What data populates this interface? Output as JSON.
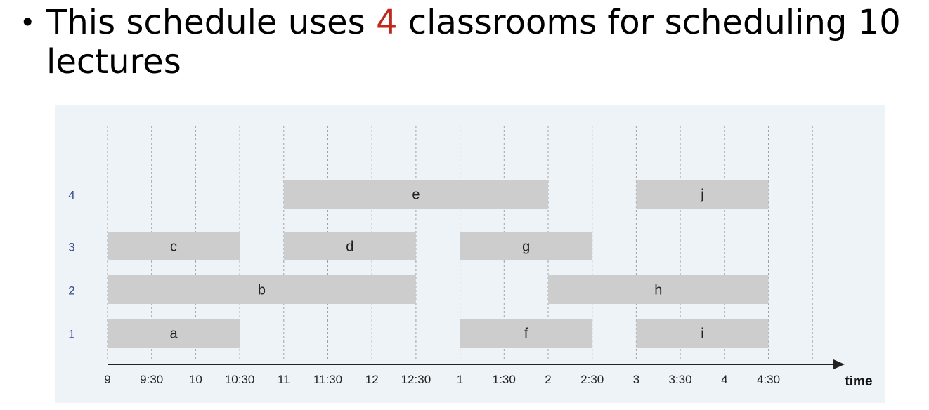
{
  "headline": {
    "bullet": "•",
    "text_before": "This schedule uses ",
    "highlight_number": "4",
    "text_after": " classrooms for scheduling 10 lectures"
  },
  "chart_data": {
    "type": "interval-schedule",
    "xlabel": "time",
    "x_ticks": [
      "9",
      "9:30",
      "10",
      "10:30",
      "11",
      "11:30",
      "12",
      "12:30",
      "1",
      "1:30",
      "2",
      "2:30",
      "3",
      "3:30",
      "4",
      "4:30"
    ],
    "classrooms": [
      "1",
      "2",
      "3",
      "4"
    ],
    "lectures": [
      {
        "label": "a",
        "room": 1,
        "start": "9",
        "end": "10:30"
      },
      {
        "label": "f",
        "room": 1,
        "start": "1",
        "end": "2:30"
      },
      {
        "label": "i",
        "room": 1,
        "start": "3",
        "end": "4:30"
      },
      {
        "label": "b",
        "room": 2,
        "start": "9",
        "end": "12:30"
      },
      {
        "label": "h",
        "room": 2,
        "start": "2",
        "end": "4:30"
      },
      {
        "label": "c",
        "room": 3,
        "start": "9",
        "end": "10:30"
      },
      {
        "label": "d",
        "room": 3,
        "start": "11",
        "end": "12:30"
      },
      {
        "label": "g",
        "room": 3,
        "start": "1",
        "end": "2:30"
      },
      {
        "label": "e",
        "room": 4,
        "start": "11",
        "end": "2"
      },
      {
        "label": "j",
        "room": 4,
        "start": "3",
        "end": "4:30"
      }
    ],
    "colors": {
      "bar": "#cdcdcd",
      "background": "#eef3f8",
      "room_label": "#3a4a8a",
      "highlight": "#c0281e"
    }
  }
}
